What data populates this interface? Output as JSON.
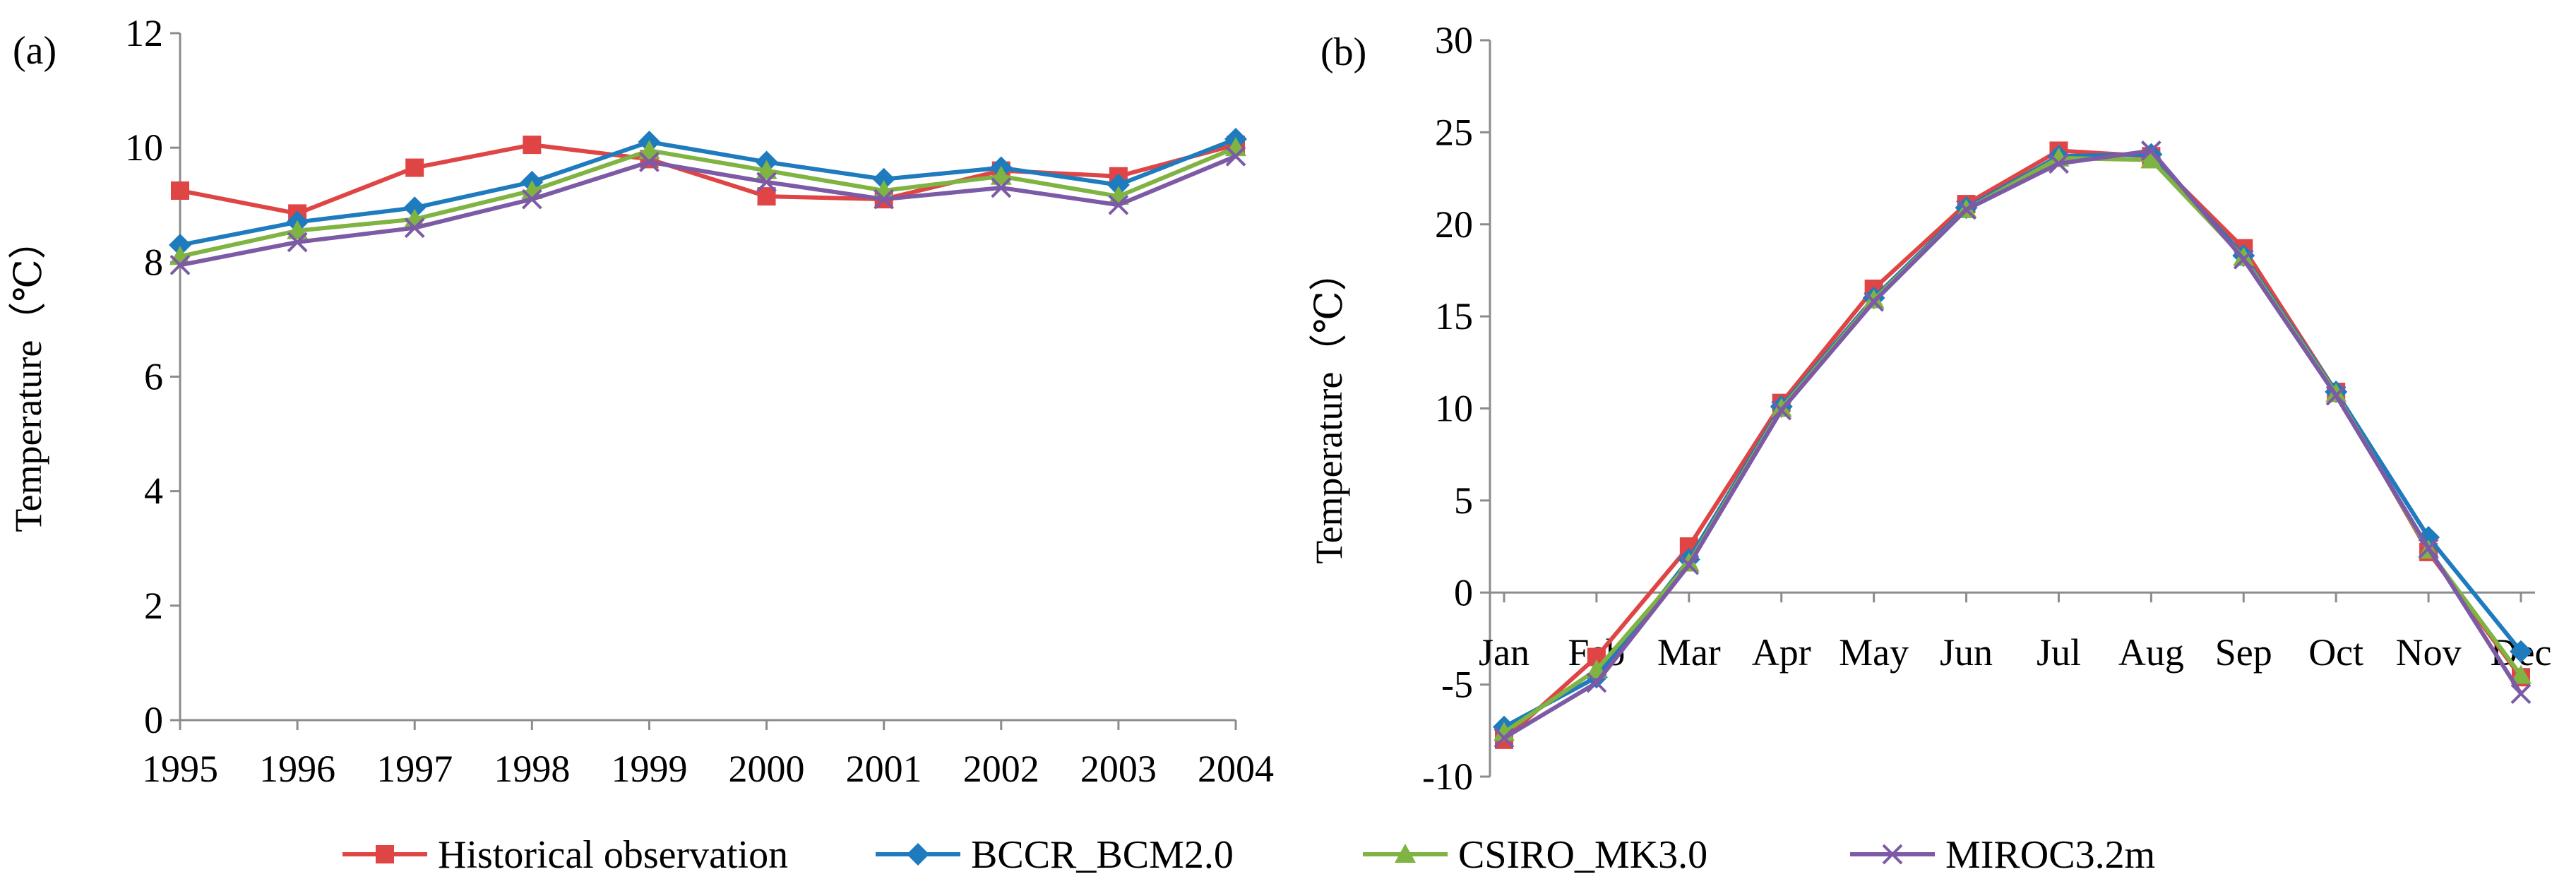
{
  "colors": {
    "Historical observation": "#E04545",
    "BCCR_BCM2.0": "#1E7BBE",
    "CSIRO_MK3.0": "#7FB342",
    "MIROC3.2m": "#7D5AA6"
  },
  "legend": [
    "Historical observation",
    "BCCR_BCM2.0",
    "CSIRO_MK3.0",
    "MIROC3.2m"
  ],
  "chart_data": [
    {
      "type": "line",
      "panel_label": "(a)",
      "title": "",
      "xlabel": "",
      "ylabel": "Temperature（℃）",
      "categories": [
        "1995",
        "1996",
        "1997",
        "1998",
        "1999",
        "2000",
        "2001",
        "2002",
        "2003",
        "2004"
      ],
      "ylim": [
        0,
        12
      ],
      "yticks": [
        0,
        2,
        4,
        6,
        8,
        10,
        12
      ],
      "ytick_labels": [
        "0",
        "2",
        "4",
        "6",
        "8",
        "10",
        "12"
      ],
      "series": [
        {
          "name": "Historical observation",
          "marker": "square",
          "values": [
            9.25,
            8.85,
            9.65,
            10.05,
            9.8,
            9.15,
            9.1,
            9.6,
            9.5,
            10.05
          ]
        },
        {
          "name": "BCCR_BCM2.0",
          "marker": "diamond",
          "values": [
            8.3,
            8.7,
            8.95,
            9.4,
            10.1,
            9.75,
            9.45,
            9.65,
            9.35,
            10.15
          ]
        },
        {
          "name": "CSIRO_MK3.0",
          "marker": "triangle",
          "values": [
            8.1,
            8.55,
            8.75,
            9.25,
            9.95,
            9.6,
            9.25,
            9.5,
            9.15,
            10.0
          ]
        },
        {
          "name": "MIROC3.2m",
          "marker": "x",
          "values": [
            7.95,
            8.35,
            8.6,
            9.1,
            9.75,
            9.4,
            9.1,
            9.3,
            9.0,
            9.85
          ]
        }
      ]
    },
    {
      "type": "line",
      "panel_label": "(b)",
      "title": "",
      "xlabel": "",
      "ylabel": "Temperature（℃）",
      "categories": [
        "Jan",
        "Feb",
        "Mar",
        "Apr",
        "May",
        "Jun",
        "Jul",
        "Aug",
        "Sep",
        "Oct",
        "Nov",
        "Dec"
      ],
      "ylim": [
        -10,
        30
      ],
      "yticks": [
        -10,
        -5,
        0,
        5,
        10,
        15,
        20,
        25,
        30
      ],
      "ytick_labels": [
        "-10",
        "-5",
        "0",
        "5",
        "10",
        "15",
        "20",
        "25",
        "30"
      ],
      "series": [
        {
          "name": "Historical observation",
          "marker": "square",
          "values": [
            -8.0,
            -3.5,
            2.5,
            10.3,
            16.5,
            21.1,
            24.0,
            23.7,
            18.7,
            10.9,
            2.2,
            -4.6
          ]
        },
        {
          "name": "BCCR_BCM2.0",
          "marker": "diamond",
          "values": [
            -7.3,
            -4.6,
            1.8,
            10.1,
            16.0,
            20.9,
            23.7,
            23.8,
            18.3,
            10.9,
            3.0,
            -3.2
          ]
        },
        {
          "name": "CSIRO_MK3.0",
          "marker": "triangle",
          "values": [
            -7.6,
            -4.2,
            1.6,
            10.0,
            15.9,
            20.8,
            23.6,
            23.5,
            18.2,
            10.8,
            2.3,
            -4.5
          ]
        },
        {
          "name": "MIROC3.2m",
          "marker": "x",
          "values": [
            -7.9,
            -4.9,
            1.5,
            9.9,
            15.8,
            20.8,
            23.3,
            24.0,
            18.1,
            10.7,
            2.4,
            -5.5
          ]
        }
      ]
    }
  ]
}
